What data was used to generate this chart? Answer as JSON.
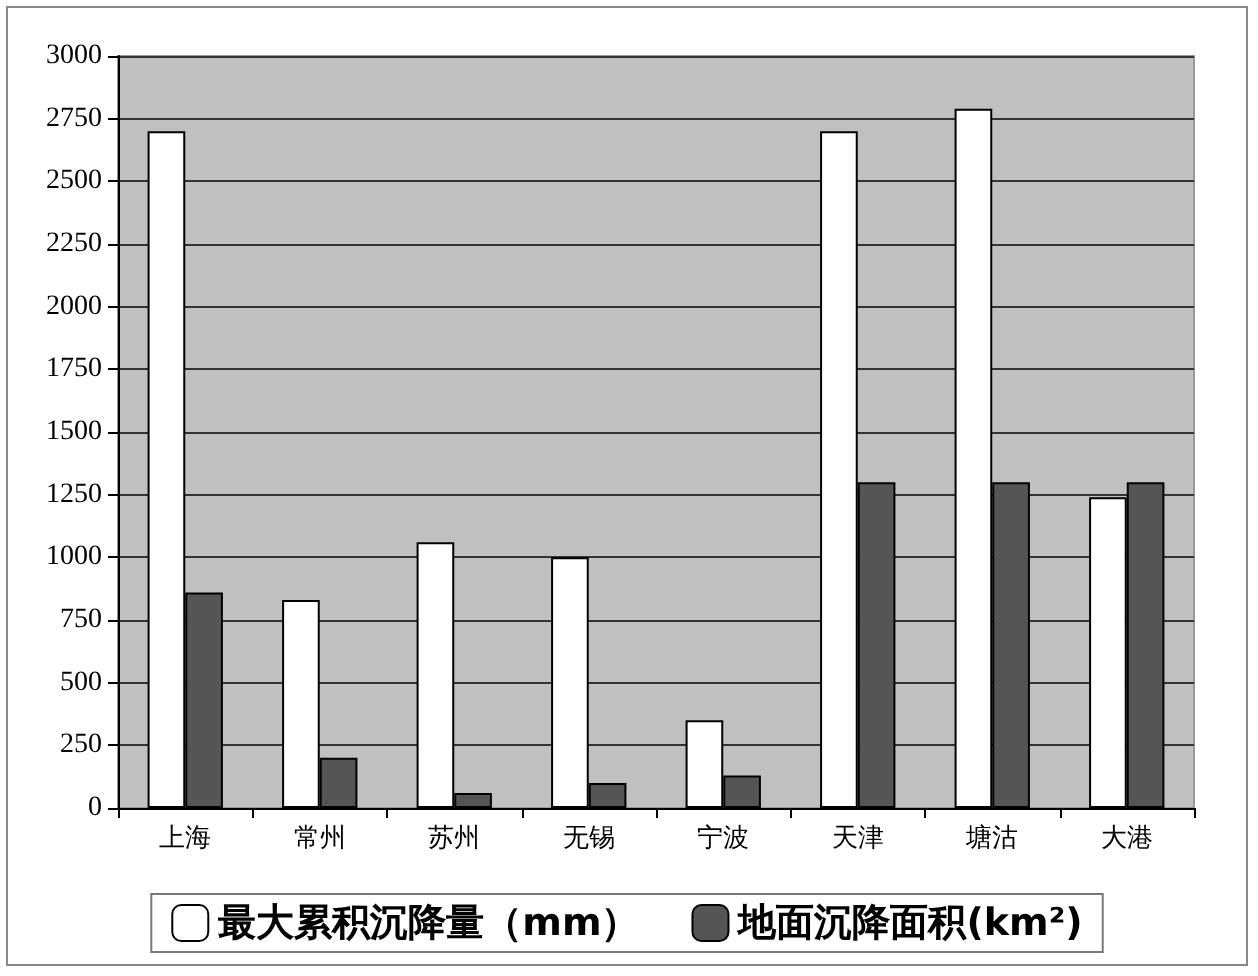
{
  "chart_data": {
    "type": "bar",
    "categories": [
      "上海",
      "常州",
      "苏州",
      "无锡",
      "宁波",
      "天津",
      "塘沽",
      "大港"
    ],
    "series": [
      {
        "name": "最大累积沉降量（mm）",
        "color": "#ffffff",
        "values": [
          2700,
          830,
          1060,
          1000,
          350,
          2700,
          2790,
          1240
        ]
      },
      {
        "name": "地面沉降面积(km²)",
        "color": "#555555",
        "values": [
          860,
          200,
          60,
          100,
          130,
          1300,
          1300,
          1300
        ]
      }
    ],
    "ylim": [
      0,
      3000
    ],
    "yticks": [
      0,
      250,
      500,
      750,
      1000,
      1250,
      1500,
      1750,
      2000,
      2250,
      2500,
      2750,
      3000
    ],
    "grid": "y",
    "legend": "bottom"
  }
}
